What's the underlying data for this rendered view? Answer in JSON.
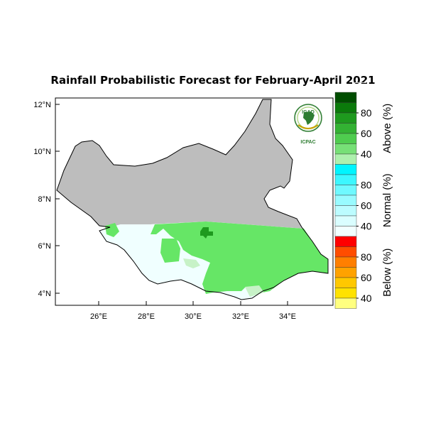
{
  "title": "Rainfall Probabilistic Forecast for February-April 2021",
  "axes": {
    "y_ticks": [
      "12°N",
      "10°N",
      "8°N",
      "6°N",
      "4°N"
    ],
    "x_ticks": [
      "26°E",
      "28°E",
      "30°E",
      "32°E",
      "34°E"
    ]
  },
  "logo": {
    "name": "IGAD",
    "subtitle": "ICPAC"
  },
  "colorbar": {
    "groups": [
      {
        "label": "Above (%)",
        "ticks": [
          "80",
          "60",
          "40"
        ],
        "colors": [
          "#004d00",
          "#0b7a0b",
          "#1e9a1e",
          "#33b233",
          "#4fcc4f",
          "#77e077",
          "#aef0ae"
        ]
      },
      {
        "label": "Normal (%)",
        "ticks": [
          "80",
          "60",
          "40"
        ],
        "colors": [
          "#00f5ff",
          "#3cf7ff",
          "#6ff9ff",
          "#99fbff",
          "#bcfcff",
          "#dafeff",
          "#f2ffff"
        ]
      },
      {
        "label": "Below (%)",
        "ticks": [
          "80",
          "60",
          "40"
        ],
        "colors": [
          "#ff0000",
          "#ff4d00",
          "#ff7f00",
          "#ffa200",
          "#ffc800",
          "#ffe200",
          "#ffff80"
        ]
      }
    ]
  },
  "map_colors": {
    "no_forecast": "#bdbdbd",
    "above": "#66e666",
    "above_dark": "#1e9a1e",
    "normal": "#f0ffff",
    "normal_light": "#c7f2c7"
  }
}
